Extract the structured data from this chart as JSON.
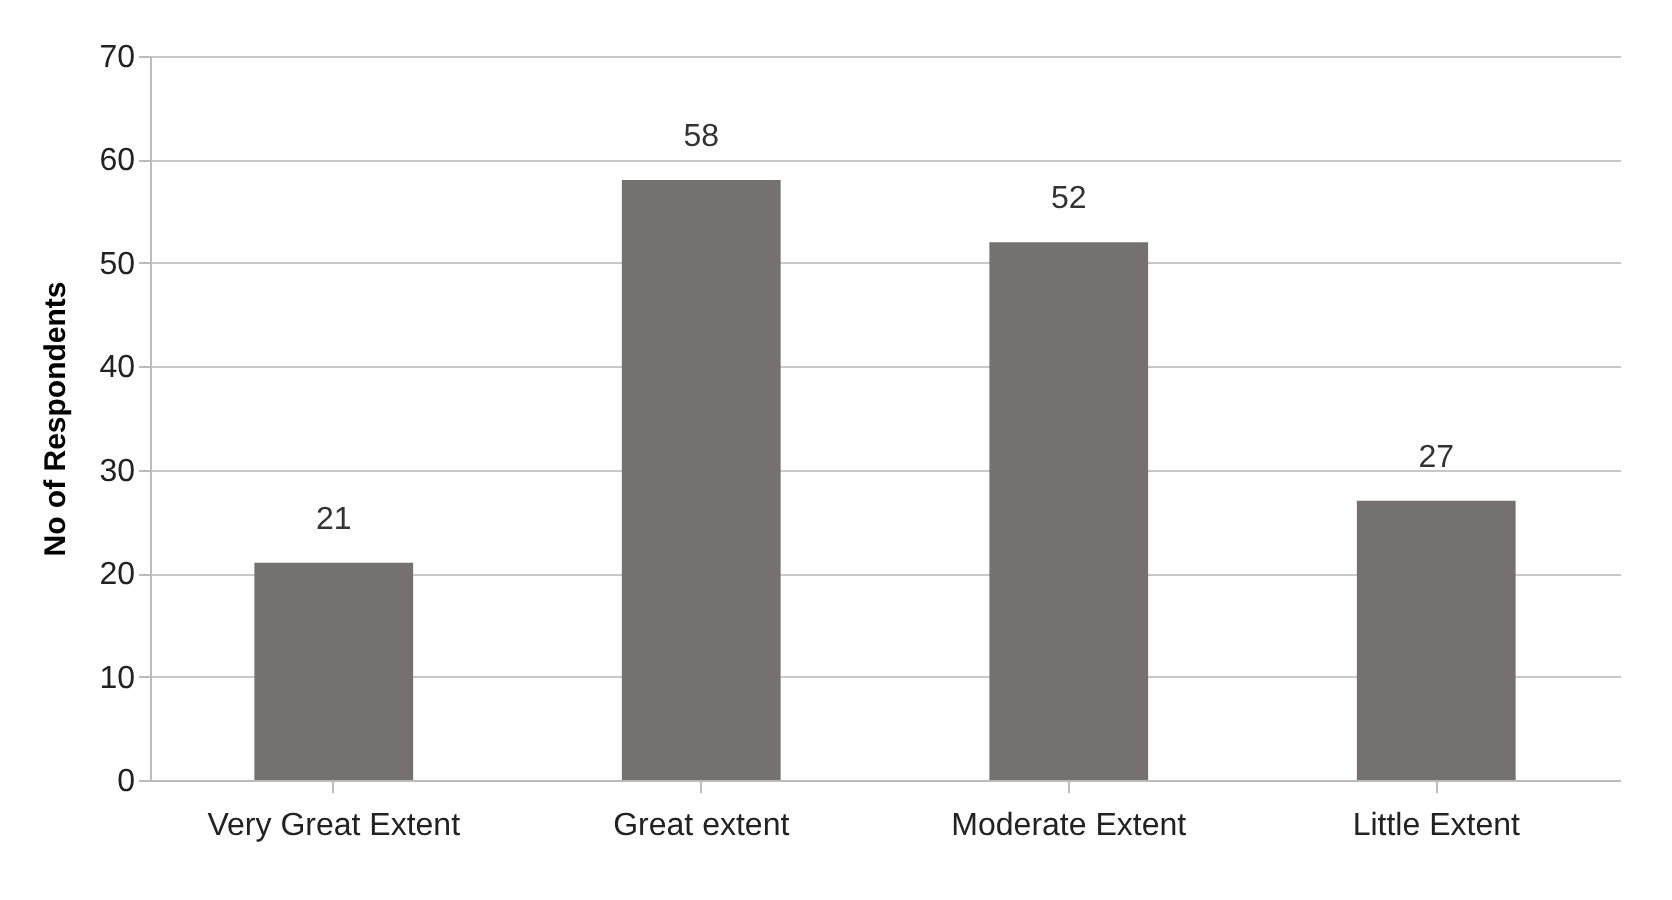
{
  "chart_data": {
    "type": "bar",
    "ylabel": "No of Respondents",
    "categories": [
      "Very Great Extent",
      "Great extent",
      "Moderate Extent",
      "Little Extent"
    ],
    "values": [
      21,
      58,
      52,
      27
    ],
    "color": "#767171",
    "ylim": [
      0,
      70
    ],
    "yticks": [
      0,
      10,
      20,
      30,
      40,
      50,
      60,
      70
    ],
    "grid": "y",
    "data_labels": true
  }
}
